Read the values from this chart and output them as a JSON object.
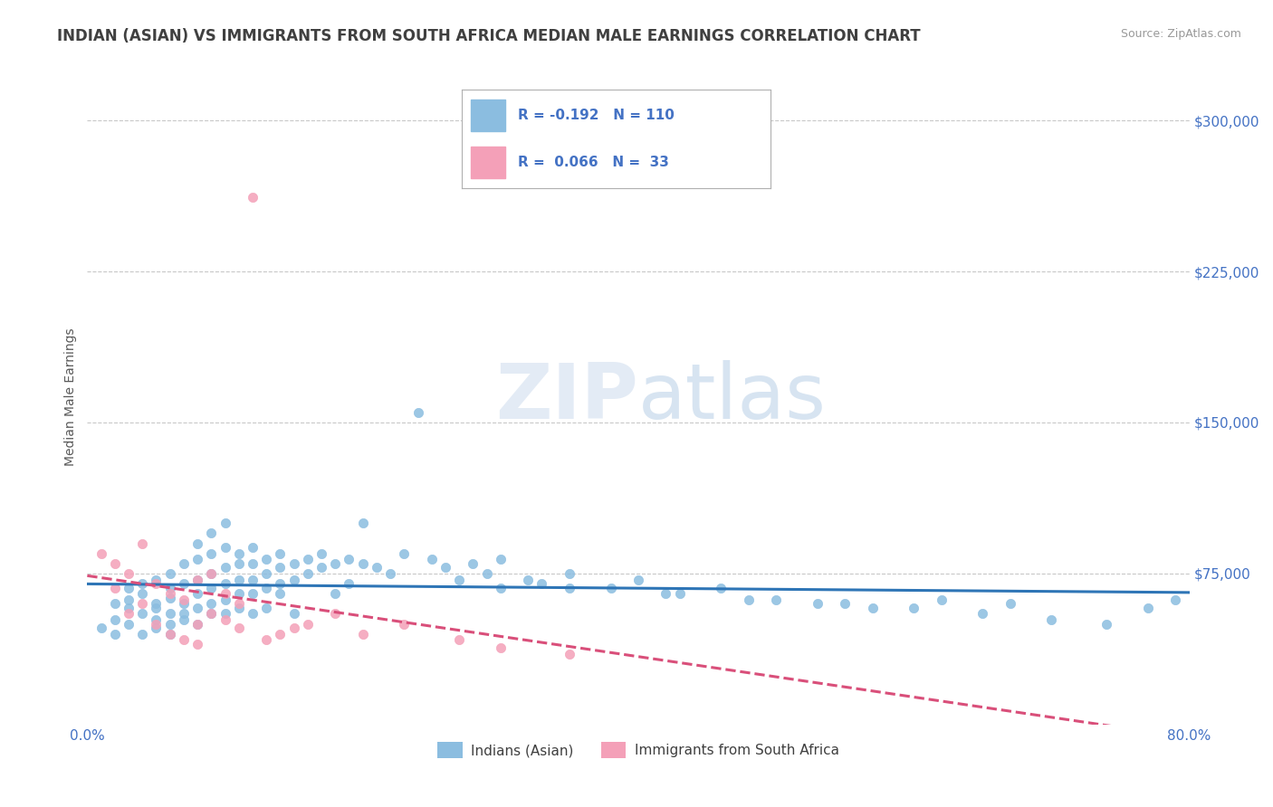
{
  "title": "INDIAN (ASIAN) VS IMMIGRANTS FROM SOUTH AFRICA MEDIAN MALE EARNINGS CORRELATION CHART",
  "source": "Source: ZipAtlas.com",
  "ylabel": "Median Male Earnings",
  "xlim": [
    0.0,
    0.8
  ],
  "ylim": [
    0,
    325000
  ],
  "yticks": [
    75000,
    150000,
    225000,
    300000
  ],
  "ytick_labels": [
    "$75,000",
    "$150,000",
    "$225,000",
    "$300,000"
  ],
  "xticks": [
    0.0,
    0.1,
    0.2,
    0.3,
    0.4,
    0.5,
    0.6,
    0.7,
    0.8
  ],
  "xtick_labels": [
    "0.0%",
    "",
    "",
    "",
    "",
    "",
    "",
    "",
    "80.0%"
  ],
  "color_blue": "#8bbde0",
  "color_pink": "#f4a0b8",
  "color_trendline_blue": "#2e75b6",
  "color_trendline_pink": "#d94f7a",
  "color_axis_text": "#4472c4",
  "color_grid": "#c8c8c8",
  "color_title": "#404040",
  "color_source": "#999999",
  "color_ylabel": "#595959",
  "title_fontsize": 12,
  "axis_label_fontsize": 10,
  "tick_fontsize": 11,
  "background_color": "#ffffff",
  "blue_scatter_x": [
    0.01,
    0.02,
    0.02,
    0.02,
    0.03,
    0.03,
    0.03,
    0.03,
    0.04,
    0.04,
    0.04,
    0.04,
    0.05,
    0.05,
    0.05,
    0.05,
    0.05,
    0.06,
    0.06,
    0.06,
    0.06,
    0.06,
    0.06,
    0.07,
    0.07,
    0.07,
    0.07,
    0.07,
    0.08,
    0.08,
    0.08,
    0.08,
    0.08,
    0.08,
    0.09,
    0.09,
    0.09,
    0.09,
    0.09,
    0.09,
    0.1,
    0.1,
    0.1,
    0.1,
    0.1,
    0.1,
    0.11,
    0.11,
    0.11,
    0.11,
    0.11,
    0.12,
    0.12,
    0.12,
    0.12,
    0.12,
    0.13,
    0.13,
    0.13,
    0.13,
    0.14,
    0.14,
    0.14,
    0.14,
    0.15,
    0.15,
    0.15,
    0.16,
    0.16,
    0.17,
    0.17,
    0.18,
    0.18,
    0.19,
    0.19,
    0.2,
    0.2,
    0.21,
    0.22,
    0.23,
    0.24,
    0.25,
    0.26,
    0.27,
    0.28,
    0.29,
    0.3,
    0.3,
    0.32,
    0.33,
    0.35,
    0.38,
    0.4,
    0.43,
    0.46,
    0.5,
    0.53,
    0.57,
    0.62,
    0.67,
    0.35,
    0.42,
    0.48,
    0.55,
    0.6,
    0.65,
    0.7,
    0.74,
    0.77,
    0.79
  ],
  "blue_scatter_y": [
    48000,
    52000,
    60000,
    45000,
    58000,
    68000,
    50000,
    62000,
    55000,
    70000,
    45000,
    65000,
    52000,
    60000,
    72000,
    48000,
    58000,
    50000,
    63000,
    55000,
    68000,
    45000,
    75000,
    52000,
    60000,
    70000,
    80000,
    55000,
    58000,
    65000,
    72000,
    82000,
    90000,
    50000,
    60000,
    68000,
    75000,
    85000,
    55000,
    95000,
    62000,
    70000,
    78000,
    88000,
    55000,
    100000,
    65000,
    72000,
    80000,
    58000,
    85000,
    65000,
    72000,
    80000,
    55000,
    88000,
    68000,
    75000,
    82000,
    58000,
    70000,
    78000,
    65000,
    85000,
    72000,
    80000,
    55000,
    75000,
    82000,
    78000,
    85000,
    80000,
    65000,
    82000,
    70000,
    80000,
    100000,
    78000,
    75000,
    85000,
    155000,
    82000,
    78000,
    72000,
    80000,
    75000,
    82000,
    68000,
    72000,
    70000,
    75000,
    68000,
    72000,
    65000,
    68000,
    62000,
    60000,
    58000,
    62000,
    60000,
    68000,
    65000,
    62000,
    60000,
    58000,
    55000,
    52000,
    50000,
    58000,
    62000
  ],
  "pink_scatter_x": [
    0.01,
    0.02,
    0.02,
    0.03,
    0.03,
    0.04,
    0.04,
    0.05,
    0.05,
    0.06,
    0.06,
    0.07,
    0.07,
    0.08,
    0.08,
    0.08,
    0.09,
    0.09,
    0.1,
    0.1,
    0.11,
    0.11,
    0.12,
    0.13,
    0.14,
    0.15,
    0.16,
    0.18,
    0.2,
    0.23,
    0.27,
    0.3,
    0.35
  ],
  "pink_scatter_y": [
    85000,
    68000,
    80000,
    55000,
    75000,
    90000,
    60000,
    50000,
    70000,
    45000,
    65000,
    42000,
    62000,
    50000,
    72000,
    40000,
    75000,
    55000,
    52000,
    65000,
    48000,
    60000,
    262000,
    42000,
    45000,
    48000,
    50000,
    55000,
    45000,
    50000,
    42000,
    38000,
    35000
  ]
}
